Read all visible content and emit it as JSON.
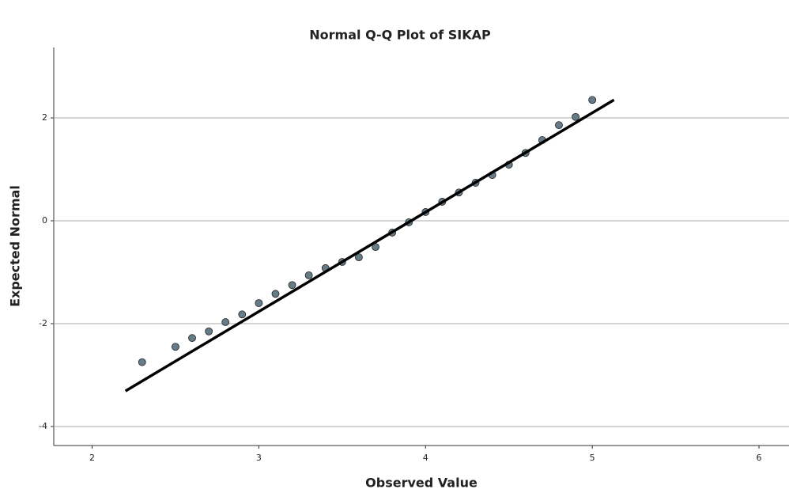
{
  "chart_data": {
    "type": "scatter",
    "title": "Normal Q-Q Plot of SIKAP",
    "x_label": "Observed Value",
    "y_label": "Expected Normal",
    "xlim": [
      1.77,
      6.18
    ],
    "ylim": [
      -4.37,
      3.37
    ],
    "xticks": [
      2,
      3,
      4,
      5,
      6
    ],
    "yticks": [
      2,
      0,
      -2,
      -4
    ],
    "grid": true,
    "series": [
      {
        "type": "scatter",
        "color": "#647c88",
        "x": [
          2.3,
          2.5,
          2.6,
          2.7,
          2.8,
          2.9,
          3.0,
          3.1,
          3.2,
          3.3,
          3.4,
          3.5,
          3.6,
          3.7,
          3.8,
          3.9,
          4.0,
          4.1,
          4.2,
          4.3,
          4.4,
          4.5,
          4.6,
          4.7,
          4.8,
          4.9,
          5.0
        ],
        "values": [
          -2.75,
          -2.45,
          -2.28,
          -2.15,
          -1.97,
          -1.82,
          -1.6,
          -1.42,
          -1.25,
          -1.06,
          -0.92,
          -0.8,
          -0.71,
          -0.51,
          -0.23,
          -0.03,
          0.17,
          0.37,
          0.55,
          0.74,
          0.89,
          1.09,
          1.32,
          1.57,
          1.86,
          2.02,
          2.35
        ]
      },
      {
        "type": "line",
        "color": "#000000",
        "x": [
          2.2,
          5.13
        ],
        "values": [
          -3.31,
          2.35
        ]
      }
    ]
  }
}
